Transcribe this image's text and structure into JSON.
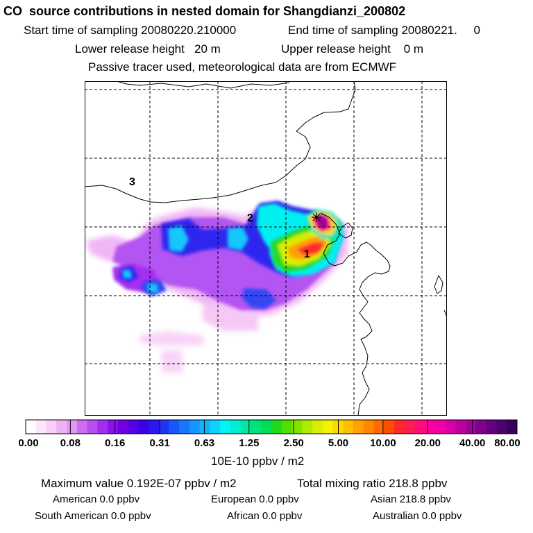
{
  "header": {
    "title": "CO  source contributions in nested domain for Shangdianzi_200802",
    "start_label": "Start time of sampling 20080220.210000",
    "end_label": "End time of sampling 20080221.     0",
    "lower_label": "Lower release height   20 m",
    "upper_label": "Upper release height    0 m",
    "tracer_note": "Passive tracer used, meteorological data are from ECMWF"
  },
  "map": {
    "region_labels": [
      "1",
      "2",
      "3"
    ],
    "receptor_marker": "receptor-star"
  },
  "colorbar": {
    "tick_labels": [
      "0.00",
      "0.08",
      "0.16",
      "0.31",
      "0.63",
      "1.25",
      "2.50",
      "5.00",
      "10.00",
      "20.00",
      "40.00",
      "80.00"
    ],
    "colors": [
      "#ffffff",
      "#fde5fd",
      "#f8cdf8",
      "#f0b2f4",
      "#e19af0",
      "#cc6cf0",
      "#b94ef0",
      "#a32ef0",
      "#8c10f0",
      "#6f00e6",
      "#5500e6",
      "#3c00e6",
      "#2a17f0",
      "#1f35f5",
      "#1857f8",
      "#1776fa",
      "#1596fb",
      "#13b3fc",
      "#10d0fc",
      "#00f4f4",
      "#00eed0",
      "#00e8a4",
      "#00e27a",
      "#00dd52",
      "#1fd820",
      "#50dd00",
      "#80e400",
      "#aeea00",
      "#d7ef00",
      "#f4f200",
      "#ffd800",
      "#ffbe00",
      "#ffa200",
      "#ff8700",
      "#ff6c00",
      "#ff4d00",
      "#ff2a28",
      "#ff1c50",
      "#ff0e7a",
      "#ff00a0",
      "#f000aa",
      "#d800a6",
      "#bc00a0",
      "#a0009a",
      "#82008e",
      "#660080",
      "#4d0070",
      "#38005a"
    ],
    "units": "10E-10 ppbv / m2"
  },
  "summary": {
    "max_label": "Maximum value  0.192E-07 ppbv / m2",
    "total_label": "Total mixing ratio      218.8 ppbv",
    "american": "American         0.0 ppbv",
    "european": "European        0.0 ppbv",
    "asian": "Asian     218.8 ppbv",
    "south_american": "South American         0.0 ppbv",
    "african": "African        0.0 ppbv",
    "australian": "Australian        0.0 ppbv"
  }
}
